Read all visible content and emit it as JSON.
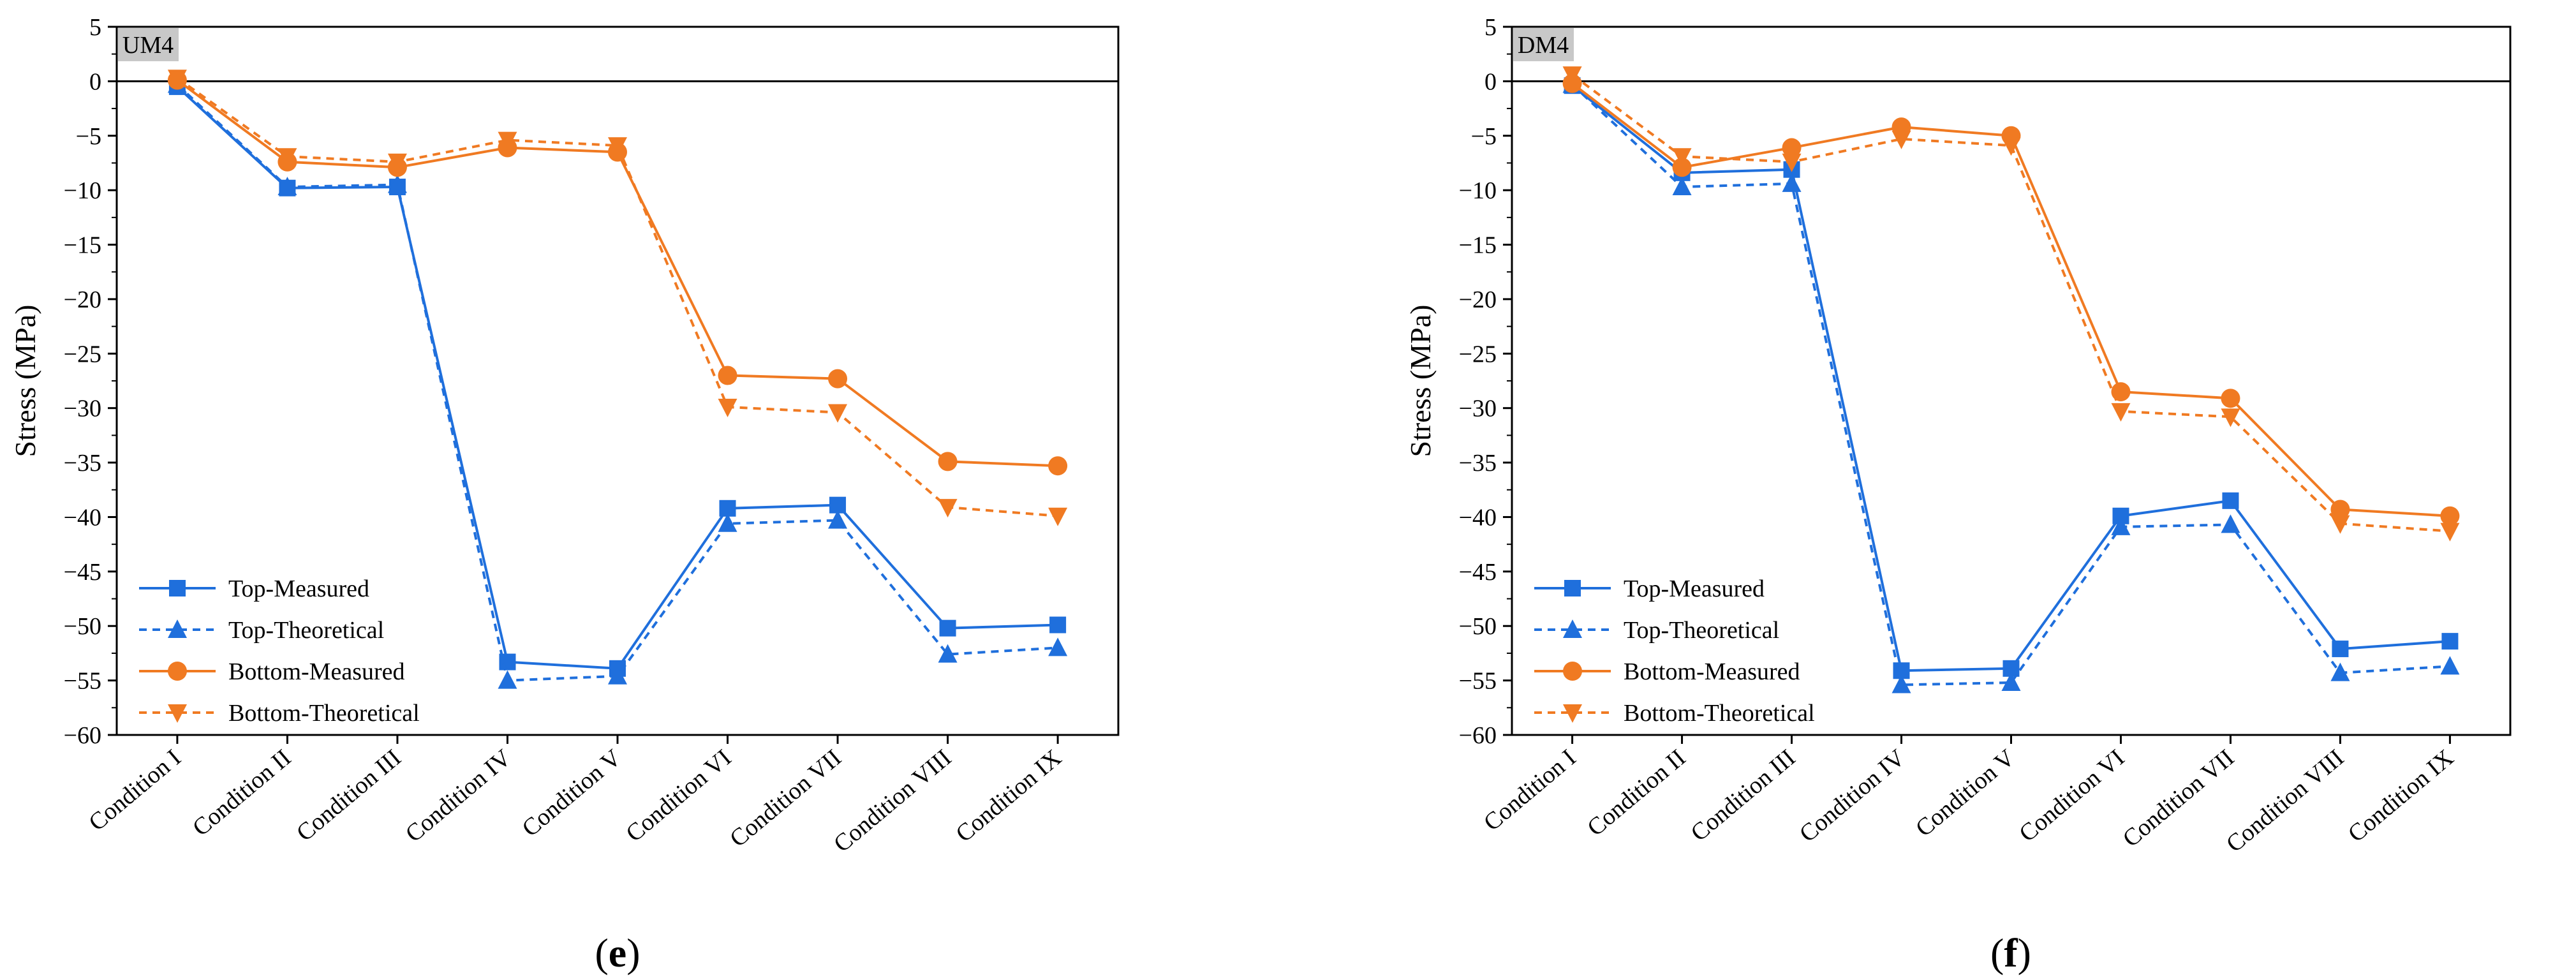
{
  "figure": {
    "panels": [
      {
        "caption": "(e)",
        "caption_letter": "e"
      },
      {
        "caption": "(f)",
        "caption_letter": "f"
      }
    ]
  },
  "colors": {
    "top": "#1f6fdc",
    "bottom": "#f07a22",
    "axis": "#000000",
    "panel_label_bg": "#c8c8c8"
  },
  "chart_data": [
    {
      "type": "line",
      "panel_label": "UM4",
      "ylabel": "Stress (MPa)",
      "xlabel": "",
      "ylim": [
        -60,
        5
      ],
      "yticks": [
        5,
        0,
        -5,
        -10,
        -15,
        -20,
        -25,
        -30,
        -35,
        -40,
        -45,
        -50,
        -55,
        -60
      ],
      "reference_line": 0,
      "categories": [
        "Condition I",
        "Condition II",
        "Condition III",
        "Condition IV",
        "Condition V",
        "Condition VI",
        "Condition VII",
        "Condition VIII",
        "Condition IX"
      ],
      "legend_position": "bottom-left",
      "series": [
        {
          "name": "Top-Measured",
          "color": "#1f6fdc",
          "style": "solid",
          "marker": "square",
          "values": [
            -0.5,
            -9.8,
            -9.7,
            -53.3,
            -53.9,
            -39.2,
            -38.9,
            -50.2,
            -49.9
          ]
        },
        {
          "name": "Top-Theoretical",
          "color": "#1f6fdc",
          "style": "dashed",
          "marker": "triangle-up",
          "values": [
            -0.3,
            -9.7,
            -9.5,
            -55.0,
            -54.6,
            -40.6,
            -40.3,
            -52.6,
            -52.0
          ]
        },
        {
          "name": "Bottom-Measured",
          "color": "#f07a22",
          "style": "solid",
          "marker": "circle",
          "values": [
            0.1,
            -7.4,
            -7.9,
            -6.1,
            -6.5,
            -27.0,
            -27.3,
            -34.9,
            -35.3
          ]
        },
        {
          "name": "Bottom-Theoretical",
          "color": "#f07a22",
          "style": "dashed",
          "marker": "triangle-down",
          "values": [
            0.3,
            -6.9,
            -7.4,
            -5.4,
            -5.9,
            -29.9,
            -30.4,
            -39.1,
            -39.9
          ]
        }
      ]
    },
    {
      "type": "line",
      "panel_label": "DM4",
      "ylabel": "Stress (MPa)",
      "xlabel": "",
      "ylim": [
        -60,
        5
      ],
      "yticks": [
        5,
        0,
        -5,
        -10,
        -15,
        -20,
        -25,
        -30,
        -35,
        -40,
        -45,
        -50,
        -55,
        -60
      ],
      "reference_line": 0,
      "categories": [
        "Condition I",
        "Condition II",
        "Condition III",
        "Condition IV",
        "Condition V",
        "Condition VI",
        "Condition VII",
        "Condition VIII",
        "Condition IX"
      ],
      "legend_position": "bottom-left",
      "series": [
        {
          "name": "Top-Measured",
          "color": "#1f6fdc",
          "style": "solid",
          "marker": "square",
          "values": [
            -0.4,
            -8.4,
            -8.1,
            -54.1,
            -53.9,
            -39.9,
            -38.5,
            -52.1,
            -51.4
          ]
        },
        {
          "name": "Top-Theoretical",
          "color": "#1f6fdc",
          "style": "dashed",
          "marker": "triangle-up",
          "values": [
            -0.3,
            -9.7,
            -9.4,
            -55.4,
            -55.2,
            -40.9,
            -40.7,
            -54.3,
            -53.7
          ]
        },
        {
          "name": "Bottom-Measured",
          "color": "#f07a22",
          "style": "solid",
          "marker": "circle",
          "values": [
            -0.2,
            -7.9,
            -6.1,
            -4.2,
            -5.0,
            -28.5,
            -29.1,
            -39.3,
            -39.9
          ]
        },
        {
          "name": "Bottom-Theoretical",
          "color": "#f07a22",
          "style": "dashed",
          "marker": "triangle-down",
          "values": [
            0.6,
            -6.9,
            -7.4,
            -5.3,
            -5.9,
            -30.3,
            -30.8,
            -40.6,
            -41.3
          ]
        }
      ]
    }
  ]
}
